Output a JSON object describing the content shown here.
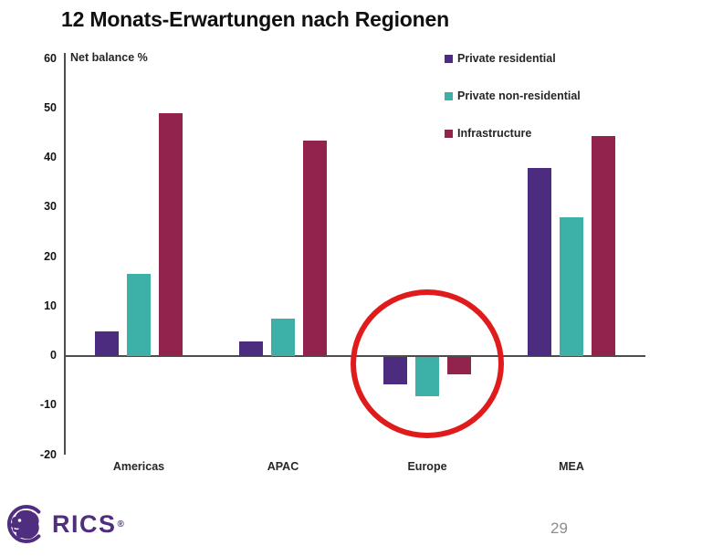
{
  "page": {
    "title": "12 Monats-Erwartungen nach Regionen",
    "page_number": "29",
    "background_color": "#ffffff"
  },
  "footer": {
    "logo_text": "RICS",
    "registered_mark": "®",
    "logo_color": "#4f2d7f"
  },
  "chart_data": {
    "type": "bar",
    "title": "12 Monats-Erwartungen nach Regionen",
    "axis_label": "Net balance %",
    "xlabel": "",
    "ylabel": "Net balance %",
    "ylim": [
      -20,
      60
    ],
    "yticks": [
      60,
      50,
      40,
      30,
      20,
      10,
      0,
      -10,
      -20
    ],
    "grid": false,
    "legend_position": "top-right-vertical",
    "axis_color": "#4d4d4d",
    "categories": [
      "Americas",
      "APAC",
      "Europe",
      "MEA"
    ],
    "series": [
      {
        "name": "Private residential",
        "color": "#4b2c7f",
        "values": [
          5,
          3,
          -5.5,
          38
        ]
      },
      {
        "name": "Private non-residential",
        "color": "#3db1a7",
        "values": [
          16.5,
          7.5,
          -8,
          28
        ]
      },
      {
        "name": "Infrastructure",
        "color": "#91234c",
        "values": [
          49,
          43.5,
          -3.5,
          44.5
        ]
      }
    ],
    "annotation": {
      "type": "circle",
      "target_category": "Europe",
      "color": "#e01b1b"
    }
  }
}
